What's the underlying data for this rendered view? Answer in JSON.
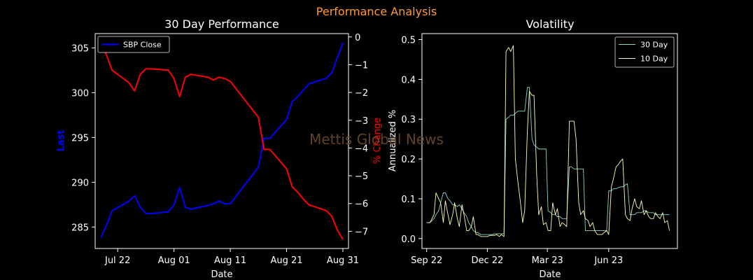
{
  "figure": {
    "suptitle": "Performance Analysis",
    "watermark": "Mettis Global News",
    "colors": {
      "background": "#000000",
      "suptitle": "#ff9933",
      "watermark": "#6b4a2a"
    }
  },
  "chart_data": [
    {
      "type": "line",
      "title": "30 Day Performance",
      "xlabel": "Date",
      "ylabel": "Last",
      "y2label": "% Change",
      "x_ticks": [
        "Jul 22",
        "Aug 01",
        "Aug 11",
        "Aug 21",
        "Aug 31"
      ],
      "x_range": [
        "2023-07-18",
        "2023-09-01"
      ],
      "ylim": [
        282.6,
        306.6
      ],
      "y_ticks": [
        285,
        290,
        295,
        300,
        305
      ],
      "y2lim": [
        -7.62,
        0.12
      ],
      "y2_ticks": [
        0,
        -1,
        -2,
        -3,
        -4,
        -5,
        -6,
        -7
      ],
      "legend": {
        "placement": "upper-left",
        "entries": [
          "SBP Close"
        ]
      },
      "series": [
        {
          "name": "SBP Close",
          "axis": "left",
          "color": "#0000ff",
          "x": [
            "2023-07-19",
            "2023-07-20",
            "2023-07-21",
            "2023-07-24",
            "2023-07-25",
            "2023-07-26",
            "2023-07-27",
            "2023-07-28",
            "2023-07-31",
            "2023-08-01",
            "2023-08-02",
            "2023-08-03",
            "2023-08-04",
            "2023-08-07",
            "2023-08-08",
            "2023-08-09",
            "2023-08-10",
            "2023-08-11",
            "2023-08-16",
            "2023-08-17",
            "2023-08-18",
            "2023-08-21",
            "2023-08-22",
            "2023-08-23",
            "2023-08-24",
            "2023-08-25",
            "2023-08-28",
            "2023-08-29",
            "2023-08-30",
            "2023-08-31"
          ],
          "y": [
            283.8,
            285.2,
            286.8,
            287.9,
            288.5,
            287.2,
            286.5,
            286.5,
            286.7,
            287.5,
            289.4,
            287.2,
            287.0,
            287.4,
            287.6,
            287.9,
            287.6,
            287.6,
            291.7,
            294.9,
            294.9,
            297.0,
            299.0,
            299.6,
            300.3,
            301.0,
            301.6,
            302.2,
            303.9,
            305.6
          ]
        },
        {
          "name": "% Change",
          "axis": "right",
          "color": "#ff0000",
          "x": [
            "2023-07-19",
            "2023-07-20",
            "2023-07-21",
            "2023-07-24",
            "2023-07-25",
            "2023-07-26",
            "2023-07-27",
            "2023-07-28",
            "2023-07-31",
            "2023-08-01",
            "2023-08-02",
            "2023-08-03",
            "2023-08-04",
            "2023-08-07",
            "2023-08-08",
            "2023-08-09",
            "2023-08-10",
            "2023-08-11",
            "2023-08-16",
            "2023-08-17",
            "2023-08-18",
            "2023-08-21",
            "2023-08-22",
            "2023-08-23",
            "2023-08-24",
            "2023-08-25",
            "2023-08-28",
            "2023-08-29",
            "2023-08-30",
            "2023-08-31"
          ],
          "y": [
            -0.15,
            -0.65,
            -1.2,
            -1.65,
            -1.95,
            -1.35,
            -1.15,
            -1.15,
            -1.2,
            -1.5,
            -2.15,
            -1.45,
            -1.35,
            -1.45,
            -1.55,
            -1.45,
            -1.5,
            -1.6,
            -2.9,
            -4.05,
            -4.05,
            -4.75,
            -5.4,
            -5.6,
            -5.85,
            -6.05,
            -6.25,
            -6.45,
            -6.95,
            -7.3
          ]
        }
      ]
    },
    {
      "type": "line",
      "title": "Volatility",
      "xlabel": "Date",
      "ylabel": "Annualized %",
      "x_ticks": [
        "Sep 22",
        "Dec 22",
        "Mar 23",
        "Jun 23"
      ],
      "x_range": [
        "2022-08-25",
        "2023-09-12"
      ],
      "ylim": [
        -0.025,
        0.515
      ],
      "y_ticks": [
        0.0,
        0.1,
        0.2,
        0.3,
        0.4,
        0.5
      ],
      "legend": {
        "placement": "upper-right",
        "entries": [
          "30 Day",
          "10 Day"
        ]
      },
      "series": [
        {
          "name": "30 Day",
          "color": "#8dd3c7",
          "x": [
            "2022-09-01",
            "2022-09-06",
            "2022-09-12",
            "2022-09-15",
            "2022-09-19",
            "2022-09-22",
            "2022-09-26",
            "2022-09-29",
            "2022-10-03",
            "2022-10-06",
            "2022-10-10",
            "2022-10-13",
            "2022-10-17",
            "2022-10-20",
            "2022-10-24",
            "2022-10-27",
            "2022-10-31",
            "2022-11-03",
            "2022-11-07",
            "2022-11-10",
            "2022-11-14",
            "2022-11-17",
            "2022-11-21",
            "2022-11-24",
            "2022-11-28",
            "2022-12-01",
            "2022-12-05",
            "2022-12-08",
            "2022-12-12",
            "2022-12-15",
            "2022-12-19",
            "2022-12-22",
            "2022-12-26",
            "2022-12-29",
            "2023-01-02",
            "2023-01-05",
            "2023-01-09",
            "2023-01-12",
            "2023-01-16",
            "2023-01-19",
            "2023-01-23",
            "2023-01-26",
            "2023-01-30",
            "2023-02-02",
            "2023-02-06",
            "2023-02-09",
            "2023-02-13",
            "2023-02-16",
            "2023-02-20",
            "2023-02-23",
            "2023-02-27",
            "2023-03-02",
            "2023-03-06",
            "2023-03-09",
            "2023-03-13",
            "2023-03-16",
            "2023-03-20",
            "2023-03-23",
            "2023-03-27",
            "2023-03-30",
            "2023-04-03",
            "2023-04-06",
            "2023-04-10",
            "2023-04-13",
            "2023-04-17",
            "2023-04-20",
            "2023-04-24",
            "2023-04-27",
            "2023-05-01",
            "2023-05-04",
            "2023-05-08",
            "2023-05-11",
            "2023-05-15",
            "2023-05-18",
            "2023-05-22",
            "2023-05-25",
            "2023-05-29",
            "2023-06-01",
            "2023-06-05",
            "2023-06-08",
            "2023-06-12",
            "2023-06-15",
            "2023-06-19",
            "2023-06-22",
            "2023-06-26",
            "2023-06-29",
            "2023-07-03",
            "2023-07-06",
            "2023-07-10",
            "2023-07-13",
            "2023-07-17",
            "2023-07-20",
            "2023-07-24",
            "2023-07-27",
            "2023-07-31",
            "2023-08-03",
            "2023-08-07",
            "2023-08-10",
            "2023-08-14",
            "2023-08-17",
            "2023-08-21",
            "2023-08-24",
            "2023-08-28",
            "2023-08-31"
          ],
          "y": [
            0.04,
            0.04,
            0.05,
            0.06,
            0.07,
            0.09,
            0.115,
            0.115,
            0.1,
            0.095,
            0.085,
            0.085,
            0.08,
            0.085,
            0.075,
            0.065,
            0.055,
            0.04,
            0.03,
            0.02,
            0.015,
            0.015,
            0.01,
            0.01,
            0.01,
            0.01,
            0.01,
            0.01,
            0.012,
            0.012,
            0.012,
            0.012,
            0.012,
            0.3,
            0.305,
            0.31,
            0.31,
            0.315,
            0.32,
            0.32,
            0.32,
            0.32,
            0.38,
            0.38,
            0.25,
            0.235,
            0.23,
            0.225,
            0.225,
            0.225,
            0.225,
            0.07,
            0.065,
            0.06,
            0.06,
            0.055,
            0.055,
            0.05,
            0.05,
            0.05,
            0.18,
            0.18,
            0.175,
            0.175,
            0.175,
            0.175,
            0.175,
            0.02,
            0.02,
            0.02,
            0.02,
            0.02,
            0.02,
            0.02,
            0.02,
            0.02,
            0.02,
            0.12,
            0.12,
            0.125,
            0.125,
            0.128,
            0.13,
            0.13,
            0.135,
            0.138,
            0.06,
            0.06,
            0.06,
            0.065,
            0.065,
            0.065,
            0.07,
            0.07,
            0.065,
            0.065,
            0.065,
            0.06,
            0.06,
            0.06,
            0.06,
            0.06,
            0.06,
            0.06
          ]
        },
        {
          "name": "10 Day",
          "color": "#ffffb3",
          "x": [
            "2022-09-01",
            "2022-09-06",
            "2022-09-12",
            "2022-09-15",
            "2022-09-19",
            "2022-09-22",
            "2022-09-26",
            "2022-09-29",
            "2022-10-03",
            "2022-10-06",
            "2022-10-10",
            "2022-10-13",
            "2022-10-17",
            "2022-10-20",
            "2022-10-24",
            "2022-10-27",
            "2022-10-31",
            "2022-11-03",
            "2022-11-07",
            "2022-11-10",
            "2022-11-14",
            "2022-11-17",
            "2022-11-21",
            "2022-11-24",
            "2022-11-28",
            "2022-12-01",
            "2022-12-05",
            "2022-12-08",
            "2022-12-12",
            "2022-12-15",
            "2022-12-19",
            "2022-12-22",
            "2022-12-26",
            "2022-12-29",
            "2023-01-02",
            "2023-01-05",
            "2023-01-09",
            "2023-01-12",
            "2023-01-16",
            "2023-01-19",
            "2023-01-23",
            "2023-01-26",
            "2023-01-30",
            "2023-02-02",
            "2023-02-06",
            "2023-02-09",
            "2023-02-13",
            "2023-02-16",
            "2023-02-20",
            "2023-02-23",
            "2023-02-27",
            "2023-03-02",
            "2023-03-06",
            "2023-03-09",
            "2023-03-13",
            "2023-03-16",
            "2023-03-20",
            "2023-03-23",
            "2023-03-27",
            "2023-03-30",
            "2023-04-03",
            "2023-04-06",
            "2023-04-10",
            "2023-04-13",
            "2023-04-17",
            "2023-04-20",
            "2023-04-24",
            "2023-04-27",
            "2023-05-01",
            "2023-05-04",
            "2023-05-08",
            "2023-05-11",
            "2023-05-15",
            "2023-05-18",
            "2023-05-22",
            "2023-05-25",
            "2023-05-29",
            "2023-06-01",
            "2023-06-05",
            "2023-06-08",
            "2023-06-12",
            "2023-06-15",
            "2023-06-19",
            "2023-06-22",
            "2023-06-26",
            "2023-06-29",
            "2023-07-03",
            "2023-07-06",
            "2023-07-10",
            "2023-07-13",
            "2023-07-17",
            "2023-07-20",
            "2023-07-24",
            "2023-07-27",
            "2023-07-31",
            "2023-08-03",
            "2023-08-07",
            "2023-08-10",
            "2023-08-14",
            "2023-08-17",
            "2023-08-21",
            "2023-08-24",
            "2023-08-28",
            "2023-08-31"
          ],
          "y": [
            0.04,
            0.04,
            0.06,
            0.115,
            0.1,
            0.09,
            0.04,
            0.095,
            0.06,
            0.035,
            0.06,
            0.09,
            0.05,
            0.03,
            0.085,
            0.06,
            0.02,
            0.02,
            0.03,
            0.055,
            0.01,
            0.01,
            0.005,
            0.005,
            0.005,
            0.005,
            0.008,
            0.008,
            0.008,
            0.01,
            0.005,
            0.01,
            0.005,
            0.47,
            0.48,
            0.47,
            0.485,
            0.2,
            0.14,
            0.1,
            0.04,
            0.07,
            0.27,
            0.37,
            0.36,
            0.36,
            0.16,
            0.06,
            0.08,
            0.035,
            0.04,
            0.02,
            0.02,
            0.09,
            0.06,
            0.075,
            0.03,
            0.04,
            0.035,
            0.03,
            0.295,
            0.295,
            0.295,
            0.25,
            0.09,
            0.06,
            0.07,
            0.05,
            0.045,
            0.03,
            0.04,
            0.02,
            0.01,
            0.01,
            0.01,
            0.015,
            0.02,
            0.01,
            0.13,
            0.15,
            0.18,
            0.185,
            0.195,
            0.2,
            0.06,
            0.05,
            0.045,
            0.075,
            0.1,
            0.08,
            0.075,
            0.095,
            0.06,
            0.07,
            0.055,
            0.05,
            0.05,
            0.065,
            0.055,
            0.05,
            0.065,
            0.04,
            0.045,
            0.02
          ]
        }
      ]
    }
  ]
}
